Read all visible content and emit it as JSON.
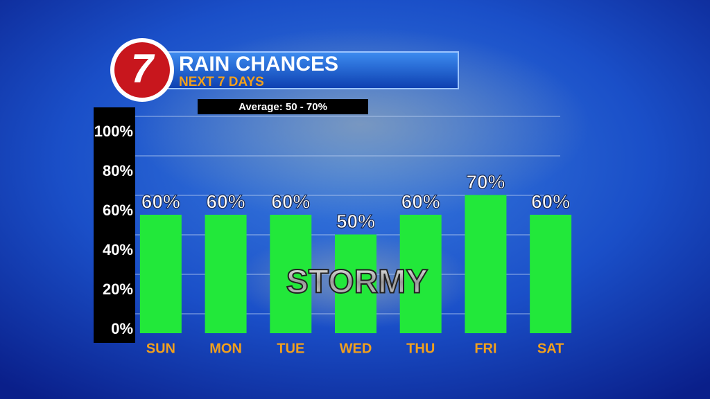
{
  "chart_data": {
    "type": "bar",
    "logo": "7",
    "title": "RAIN CHANCES",
    "subtitle": "NEXT 7 DAYS",
    "note": "Average: 50 - 70%",
    "annotation": "STORMY",
    "categories": [
      "SUN",
      "MON",
      "TUE",
      "WED",
      "THU",
      "FRI",
      "SAT"
    ],
    "values": [
      60,
      60,
      60,
      50,
      60,
      70,
      60
    ],
    "value_labels": [
      "60%",
      "60%",
      "60%",
      "50%",
      "60%",
      "70%",
      "60%"
    ],
    "color": "#22e83a",
    "ylim": [
      0,
      100
    ],
    "yticks": [
      {
        "value": 0,
        "label": "0%"
      },
      {
        "value": 20,
        "label": "20%"
      },
      {
        "value": 40,
        "label": "40%"
      },
      {
        "value": 60,
        "label": "60%"
      },
      {
        "value": 80,
        "label": "80%"
      },
      {
        "value": 100,
        "label": "100%"
      }
    ],
    "grid": true
  }
}
